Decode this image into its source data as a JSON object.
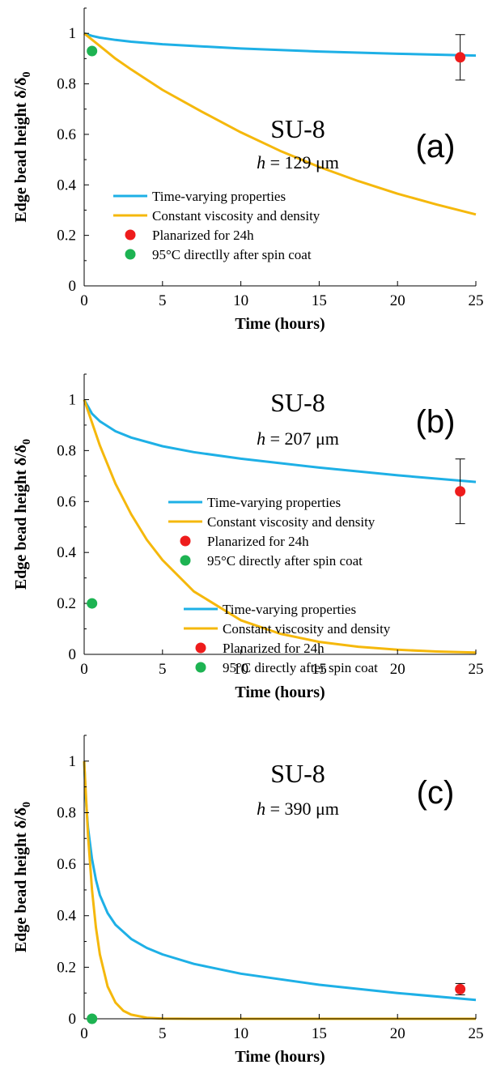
{
  "chart_data": [
    {
      "type": "line",
      "panel_label": "(a)",
      "material": "SU-8",
      "thickness": {
        "symbol": "h",
        "rest": " = 129 μm"
      },
      "xlabel": "Time (hours)",
      "ylabel": "Edge bead height δ/δ",
      "ylabel_sub": "0",
      "xlim": [
        0,
        25
      ],
      "ylim": [
        0,
        1.1
      ],
      "xticks": [
        "0",
        "5",
        "10",
        "15",
        "20",
        "25"
      ],
      "yticks": [
        "0",
        "0.2",
        "0.4",
        "0.6",
        "0.8",
        "1"
      ],
      "legend_position": "lower-left",
      "series": [
        {
          "name": "Time-varying properties",
          "color": "#1eb0e6",
          "kind": "line",
          "x": [
            0,
            0.5,
            1,
            2,
            3,
            5,
            10,
            15,
            20,
            25
          ],
          "y": [
            1,
            0.99,
            0.983,
            0.974,
            0.967,
            0.957,
            0.94,
            0.928,
            0.919,
            0.912
          ]
        },
        {
          "name": "Constant viscosity and density",
          "color": "#f5b80c",
          "kind": "line",
          "x": [
            0,
            1,
            2,
            3,
            5,
            7.5,
            10,
            12.5,
            15,
            17.5,
            20,
            22.5,
            25
          ],
          "y": [
            1,
            0.95,
            0.9,
            0.857,
            0.776,
            0.69,
            0.608,
            0.535,
            0.471,
            0.415,
            0.365,
            0.322,
            0.283
          ]
        },
        {
          "name": "Planarized for 24h",
          "color": "#ee1c1c",
          "kind": "point",
          "x": [
            24
          ],
          "y": [
            0.905
          ],
          "err": [
            0.09
          ]
        },
        {
          "name": "95°C directlly after spin coat",
          "color": "#1db352",
          "kind": "point",
          "x": [
            0.5
          ],
          "y": [
            0.93
          ]
        }
      ]
    },
    {
      "type": "line",
      "panel_label": "(b)",
      "material": "SU-8",
      "thickness": {
        "symbol": "h",
        "rest": " = 207 μm"
      },
      "xlabel": "Time (hours)",
      "ylabel": "Edge bead height δ/δ",
      "ylabel_sub": "0",
      "xlim": [
        0,
        25
      ],
      "ylim": [
        0,
        1.1
      ],
      "xticks": [
        "0",
        "5",
        "10",
        "15",
        "20",
        "25"
      ],
      "yticks": [
        "0",
        "0.2",
        "0.4",
        "0.6",
        "0.8",
        "1"
      ],
      "legend_position": "center-right",
      "series": [
        {
          "name": "Time-varying properties",
          "color": "#1eb0e6",
          "kind": "line",
          "x": [
            0,
            0.5,
            1,
            2,
            3,
            5,
            7,
            10,
            15,
            20,
            25
          ],
          "y": [
            1,
            0.945,
            0.915,
            0.876,
            0.851,
            0.817,
            0.794,
            0.768,
            0.733,
            0.703,
            0.677
          ]
        },
        {
          "name": "Constant viscosity and density",
          "color": "#f5b80c",
          "kind": "line",
          "x": [
            0,
            1,
            2,
            3,
            4,
            5,
            7,
            10,
            12.5,
            15,
            17.5,
            20,
            22.5,
            25
          ],
          "y": [
            1,
            0.82,
            0.67,
            0.55,
            0.45,
            0.37,
            0.247,
            0.134,
            0.081,
            0.049,
            0.03,
            0.018,
            0.011,
            0.007
          ]
        },
        {
          "name": "Planarized for 24h",
          "color": "#ee1c1c",
          "kind": "point",
          "x": [
            24
          ],
          "y": [
            0.64
          ],
          "err": [
            0.127
          ]
        },
        {
          "name": "95°C directly after spin coat",
          "color": "#1db352",
          "kind": "point",
          "x": [
            0.5
          ],
          "y": [
            0.2
          ]
        }
      ]
    },
    {
      "type": "line",
      "panel_label": "(c)",
      "material": "SU-8",
      "thickness": {
        "symbol": "h",
        "rest": " = 390 μm"
      },
      "xlabel": "Time (hours)",
      "ylabel": "Edge bead height δ/δ",
      "ylabel_sub": "0",
      "xlim": [
        0,
        25
      ],
      "ylim": [
        0,
        1.1
      ],
      "xticks": [
        "0",
        "5",
        "10",
        "15",
        "20",
        "25"
      ],
      "yticks": [
        "0",
        "0.2",
        "0.4",
        "0.6",
        "0.8",
        "1"
      ],
      "legend_position": "center-right",
      "series": [
        {
          "name": "Time-varying properties",
          "color": "#1eb0e6",
          "kind": "line",
          "x": [
            0,
            0.1,
            0.25,
            0.5,
            0.75,
            1,
            1.5,
            2,
            3,
            4,
            5,
            7,
            10,
            15,
            20,
            25
          ],
          "y": [
            1,
            0.86,
            0.74,
            0.62,
            0.54,
            0.48,
            0.41,
            0.365,
            0.31,
            0.275,
            0.25,
            0.213,
            0.175,
            0.132,
            0.1,
            0.073
          ]
        },
        {
          "name": "Constant viscosity and density",
          "color": "#f5b80c",
          "kind": "line",
          "x": [
            0,
            0.25,
            0.5,
            0.75,
            1,
            1.5,
            2,
            2.5,
            3,
            4,
            5,
            7,
            10,
            15,
            20,
            25
          ],
          "y": [
            1,
            0.71,
            0.5,
            0.355,
            0.25,
            0.125,
            0.063,
            0.031,
            0.016,
            0.004,
            0.001,
            0,
            0,
            0,
            0,
            0
          ]
        },
        {
          "name": "Planarized for 24h",
          "color": "#ee1c1c",
          "kind": "point",
          "x": [
            24
          ],
          "y": [
            0.115
          ],
          "err": [
            0.022
          ]
        },
        {
          "name": "95°C directly after spin coat",
          "color": "#1db352",
          "kind": "point",
          "x": [
            0.5
          ],
          "y": [
            0.0
          ]
        }
      ]
    }
  ]
}
